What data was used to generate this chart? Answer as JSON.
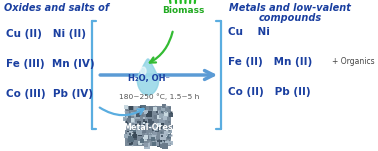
{
  "bg_color": "#ffffff",
  "title_left": "Oxides and salts of",
  "title_right_line1": "Metals and low-valent",
  "title_right_line2": "compounds",
  "left_lines": [
    "Cu (II)   Ni (II)",
    "Fe (III)  Mn (IV)",
    "Co (III)  Pb (IV)"
  ],
  "right_lines": [
    "Cu    Ni",
    "Fe (II)   Mn (II)",
    "Co (II)   Pb (II)"
  ],
  "arrow_label_top": "H₂O, OH⁻",
  "arrow_label_bot": "180~250 °C, 1.5~5 h",
  "biomass_label": "Biomass",
  "metal_ores_label": "Metal-Ores",
  "organics_label": "+ Organics",
  "blue_dark": "#1a3fa0",
  "green_biomass": "#22aa22",
  "arrow_blue": "#5b9bd5",
  "bracket_blue": "#5aade0",
  "drop_light": "#aaddee",
  "drop_mid": "#7ec8e3"
}
